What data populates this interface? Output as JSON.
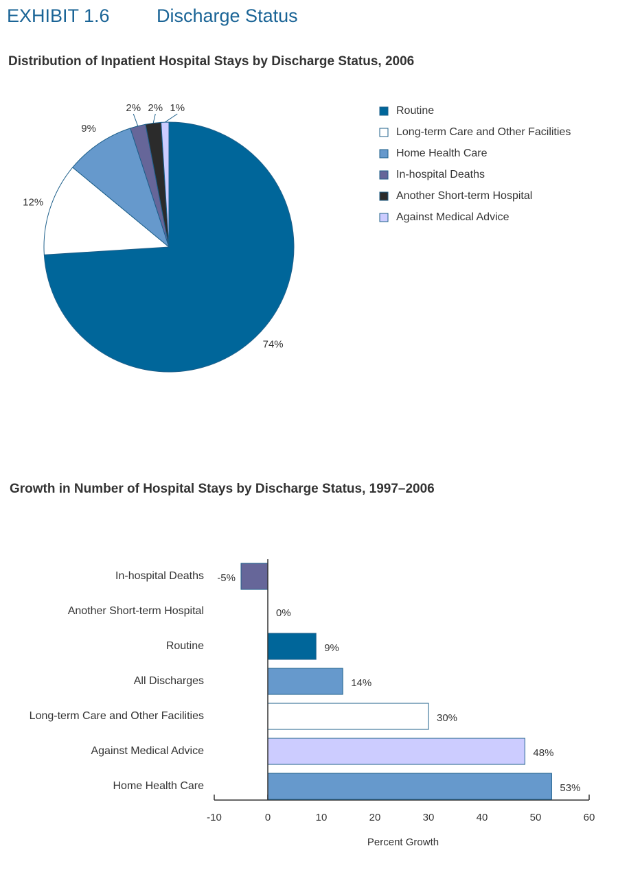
{
  "header": {
    "exhibit": "EXHIBIT 1.6",
    "title": "Discharge Status"
  },
  "chart_data": [
    {
      "type": "pie",
      "title": "Distribution of Inpatient Hospital Stays by Discharge Status, 2006",
      "categories": [
        "Routine",
        "Long-term Care and Other Facilities",
        "Home Health Care",
        "In-hospital Deaths",
        "Another Short-term Hospital",
        "Against Medical Advice"
      ],
      "values": [
        74,
        12,
        9,
        2,
        2,
        1
      ],
      "value_labels": [
        "74%",
        "12%",
        "9%",
        "2%",
        "2%",
        "1%"
      ],
      "colors": [
        "#00669a",
        "#ffffff",
        "#6699cc",
        "#666699",
        "#2b2b2b",
        "#ccccff"
      ],
      "legend": "right"
    },
    {
      "type": "hbar",
      "title": "Growth in Number of Hospital Stays by Discharge Status, 1997–2006",
      "x_label": "Percent Growth",
      "categories": [
        "In-hospital Deaths",
        "Another Short-term Hospital",
        "Routine",
        "All Discharges",
        "Long-term Care and Other Facilities",
        "Against Medical Advice",
        "Home Health Care"
      ],
      "values": [
        -5,
        0,
        9,
        14,
        30,
        48,
        53
      ],
      "value_labels": [
        "-5%",
        "0%",
        "9%",
        "14%",
        "30%",
        "48%",
        "53%"
      ],
      "colors": [
        "#666699",
        "#00669a",
        "#00669a",
        "#6699cc",
        "#ffffff",
        "#ccccff",
        "#6699cc"
      ],
      "xlim": [
        -10,
        60
      ],
      "xticks": [
        -10,
        0,
        10,
        20,
        30,
        40,
        50,
        60
      ]
    }
  ]
}
